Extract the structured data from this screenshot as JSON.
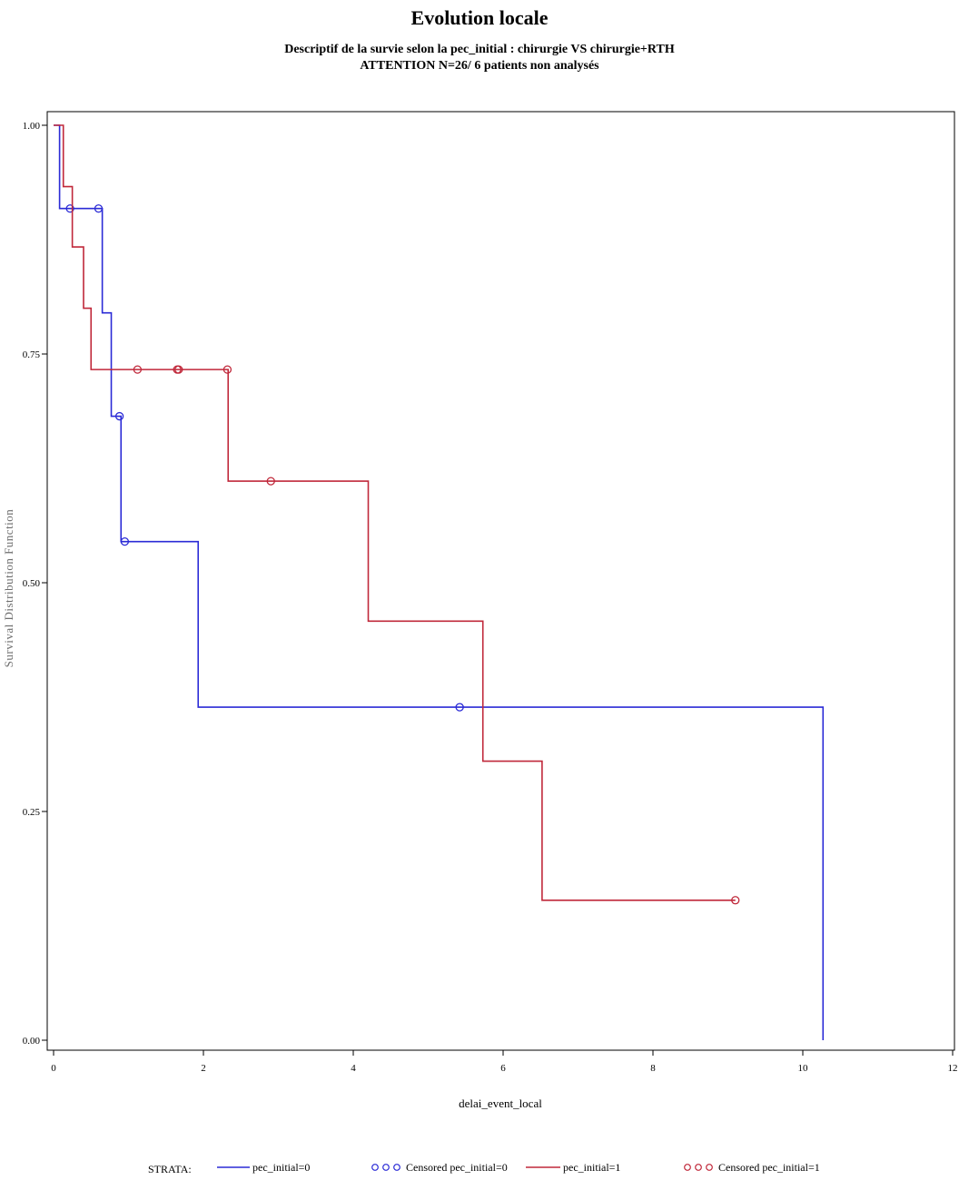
{
  "chart_data": {
    "type": "line",
    "title": "Evolution locale",
    "subtitle_lines": [
      "Descriptif de la survie selon la pec_initial : chirurgie VS chirurgie+RTH",
      "ATTENTION N=26/ 6 patients non analysés"
    ],
    "xlabel": "delai_event_local",
    "ylabel": "Survival Distribution Function",
    "xlim": [
      0,
      12
    ],
    "ylim": [
      0,
      1
    ],
    "x_ticks": [
      0,
      2,
      4,
      6,
      8,
      10,
      12
    ],
    "x_tick_labels": [
      "0",
      "2",
      "4",
      "6",
      "8",
      "10",
      "12"
    ],
    "y_ticks": [
      0,
      0.25,
      0.5,
      0.75,
      1.0
    ],
    "y_tick_labels": [
      "0.00",
      "0.25",
      "0.50",
      "0.75",
      "1.00"
    ],
    "grid": false,
    "legend_position": "bottom",
    "legend_title": "STRATA:",
    "series": [
      {
        "name": "pec_initial=0",
        "color": "#2b2bd6",
        "censored_label": "Censored pec_initial=0",
        "steps": [
          [
            0,
            1.0
          ],
          [
            0.08,
            0.909
          ],
          [
            0.65,
            0.795
          ],
          [
            0.77,
            0.682
          ],
          [
            0.9,
            0.545
          ],
          [
            1.93,
            0.364
          ],
          [
            10.27,
            0.0
          ]
        ],
        "end_x": 10.27,
        "censored": [
          {
            "x": 0.22,
            "y": 0.909
          },
          {
            "x": 0.6,
            "y": 0.909
          },
          {
            "x": 0.88,
            "y": 0.682
          },
          {
            "x": 0.95,
            "y": 0.545
          },
          {
            "x": 5.42,
            "y": 0.364
          }
        ]
      },
      {
        "name": "pec_initial=1",
        "color": "#c0283a",
        "censored_label": "Censored pec_initial=1",
        "steps": [
          [
            0,
            1.0
          ],
          [
            0.13,
            0.933
          ],
          [
            0.25,
            0.867
          ],
          [
            0.4,
            0.8
          ],
          [
            0.5,
            0.733
          ],
          [
            2.33,
            0.611
          ],
          [
            4.2,
            0.458
          ],
          [
            5.73,
            0.305
          ],
          [
            6.52,
            0.153
          ]
        ],
        "end_x": 9.1,
        "censored": [
          {
            "x": 1.12,
            "y": 0.733
          },
          {
            "x": 1.65,
            "y": 0.733
          },
          {
            "x": 1.67,
            "y": 0.733
          },
          {
            "x": 2.32,
            "y": 0.733
          },
          {
            "x": 2.9,
            "y": 0.611
          },
          {
            "x": 9.1,
            "y": 0.153
          }
        ]
      }
    ]
  }
}
